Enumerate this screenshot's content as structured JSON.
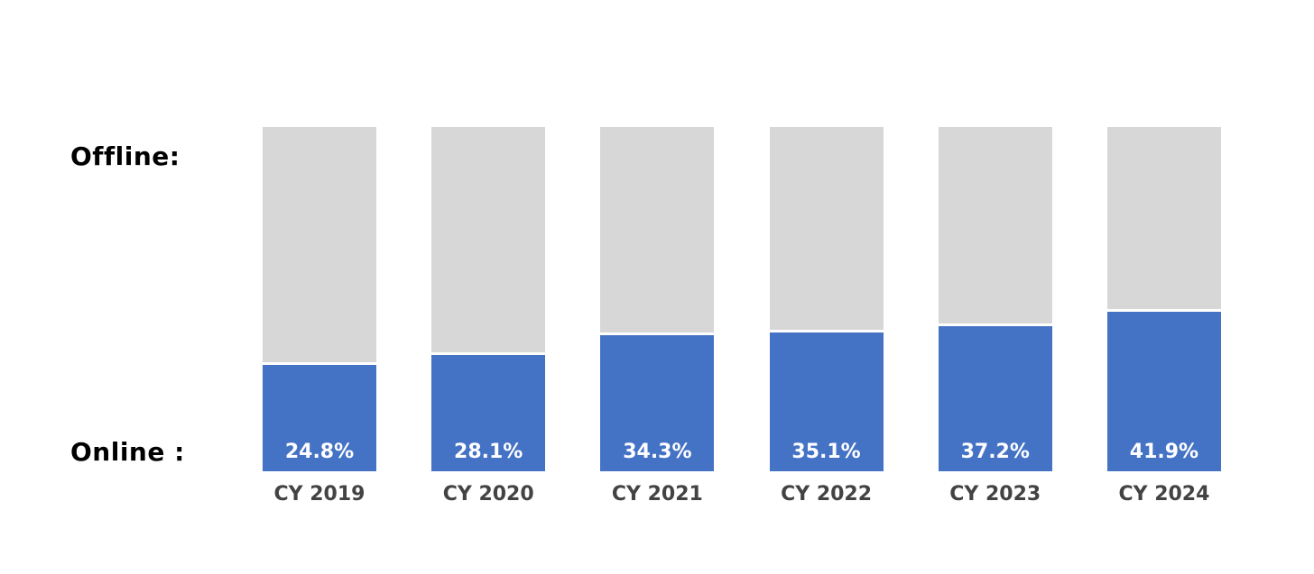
{
  "chart": {
    "offline_label": "Offline:",
    "online_label": "Online :"
  },
  "chart_data": {
    "type": "bar",
    "subtype": "stacked-100-percent",
    "orientation": "vertical",
    "categories": [
      "CY 2019",
      "CY 2020",
      "CY 2021",
      "CY 2022",
      "CY 2023",
      "CY 2024"
    ],
    "series": [
      {
        "name": "Online",
        "values": [
          24.8,
          28.1,
          34.3,
          35.1,
          37.2,
          41.9
        ],
        "color": "#4472C4"
      },
      {
        "name": "Offline",
        "values": [
          75.2,
          71.9,
          65.7,
          64.9,
          62.8,
          58.1
        ],
        "color": "#D7D7D7"
      }
    ],
    "data_labels": [
      "24.8%",
      "28.1%",
      "34.3%",
      "35.1%",
      "37.2%",
      "41.9%"
    ],
    "data_label_series": "Online",
    "data_label_position": "inside-bottom",
    "ylim": [
      0,
      100
    ],
    "grid": false,
    "axes_visible": false,
    "legend_position": "row-labels-left",
    "row_labels": {
      "top": "Offline:",
      "bottom": "Online :"
    },
    "category_label_color": "#434343",
    "value_label_color": "#FFFFFF",
    "row_label_color": "#000000",
    "separator_color": "#FFFFFF",
    "background_color": "#FFFFFF"
  }
}
